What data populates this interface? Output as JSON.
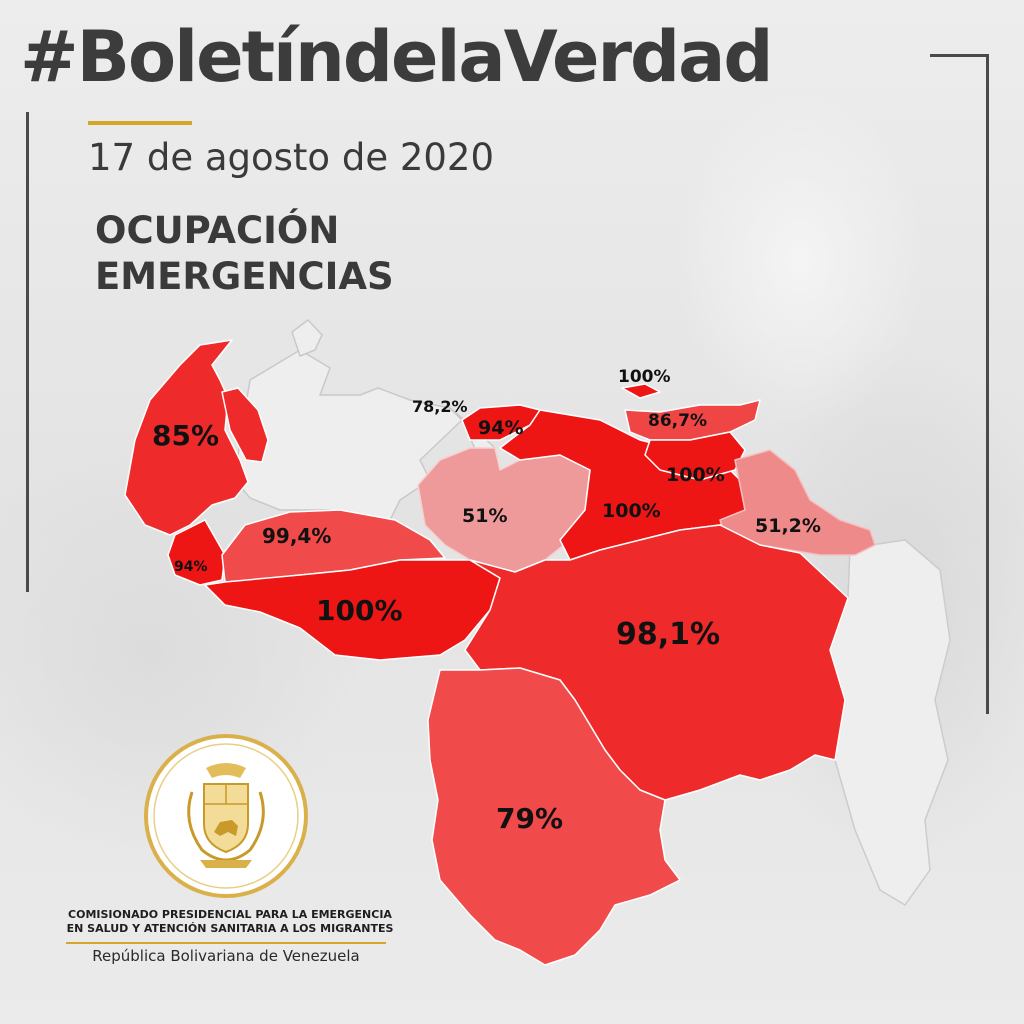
{
  "header": {
    "hashtag": "#BoletíndelaVerdad",
    "date": "17 de agosto de 2020",
    "subtitle_line1": "OCUPACIÓN",
    "subtitle_line2": "EMERGENCIAS"
  },
  "map_labels": {
    "zulia": "85%",
    "falcon_lara_area": "78,2%",
    "carabobo_aragua": "94%",
    "nueva_esparta": "100%",
    "sucre": "86,7%",
    "monagas": "100%",
    "anzoategui": "100%",
    "guarico": "51%",
    "delta_amacuro": "51,2%",
    "barinas_portuguesa": "99,4%",
    "tachira": "94%",
    "apure": "100%",
    "bolivar": "98,1%",
    "amazonas": "79%"
  },
  "colors": {
    "title_gray": "#3c3c3c",
    "accent_gold": "#d4a72c",
    "deep_red": "#ee1515",
    "mid_red": "#f03535",
    "light_red": "#f04a4a",
    "pink": "#ee9a9a",
    "salmon": "#ef8a8a",
    "unfilled_state": "#eeeeee"
  },
  "footer": {
    "agency_line1": "COMISIONADO PRESIDENCIAL PARA LA EMERGENCIA",
    "agency_line2": "EN SALUD Y ATENCIÓN SANITARIA A LOS MIGRANTES",
    "country": "República Bolivariana de Venezuela"
  },
  "icons": [
    "venezuela-coat-of-arms-seal-icon"
  ]
}
